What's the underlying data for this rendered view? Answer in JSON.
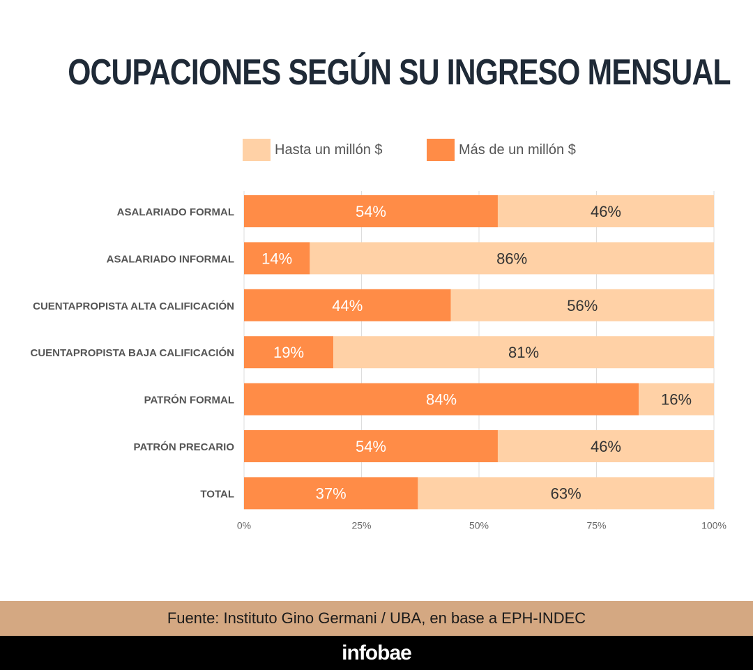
{
  "chart_data": {
    "type": "bar",
    "orientation": "horizontal",
    "stacked": true,
    "title": "OCUPACIONES SEGÚN SU INGRESO MENSUAL",
    "categories": [
      "ASALARIADO FORMAL",
      "ASALARIADO INFORMAL",
      "CUENTAPROPISTA ALTA CALIFICACIÓN",
      "CUENTAPROPISTA BAJA CALIFICACIÓN",
      "PATRÓN FORMAL",
      "PATRÓN PRECARIO",
      "TOTAL"
    ],
    "series": [
      {
        "name": "Más de un millón $",
        "color": "#ff8c47",
        "values": [
          54,
          14,
          44,
          19,
          84,
          54,
          37
        ]
      },
      {
        "name": "Hasta un millón $",
        "color": "#ffd1a6",
        "values": [
          46,
          86,
          56,
          81,
          16,
          46,
          63
        ]
      }
    ],
    "xlim": [
      0,
      100
    ],
    "xticks": [
      "0%",
      "25%",
      "50%",
      "75%",
      "100%"
    ],
    "value_suffix": "%",
    "legend_order": [
      "Hasta un millón $",
      "Más de un millón $"
    ],
    "legend_position": "top",
    "grid": true
  },
  "footer": {
    "source": "Fuente: Instituto Gino Germani / UBA, en base a EPH-INDEC",
    "brand": "infobae"
  }
}
